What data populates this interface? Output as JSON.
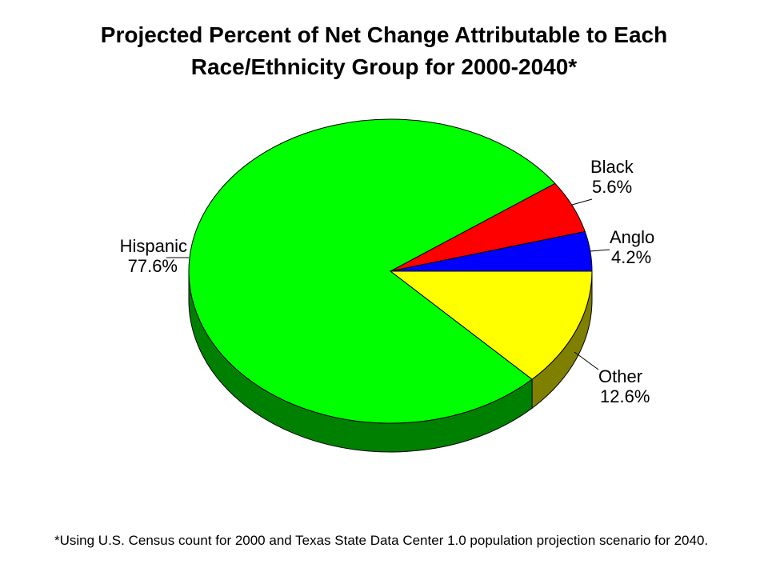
{
  "chart_data": {
    "type": "pie",
    "title_lines": [
      "Projected Percent of Net Change Attributable to Each",
      "Race/Ethnicity Group for 2000-2040*"
    ],
    "slices": [
      {
        "label": "Black",
        "pct_text": "5.6%",
        "value": 5.6,
        "color": "#ff0000",
        "side_color": "#800000"
      },
      {
        "label": "Anglo",
        "pct_text": "4.2%",
        "value": 4.2,
        "color": "#0000ff",
        "side_color": "#000080"
      },
      {
        "label": "Other",
        "pct_text": "12.6%",
        "value": 12.6,
        "color": "#ffff00",
        "side_color": "#808000"
      },
      {
        "label": "Hispanic",
        "pct_text": "77.6%",
        "value": 77.6,
        "color": "#00ff00",
        "side_color": "#008000"
      }
    ],
    "footnote": "*Using U.S. Census count for 2000 and Texas State Data Center 1.0 population projection scenario for 2040."
  }
}
